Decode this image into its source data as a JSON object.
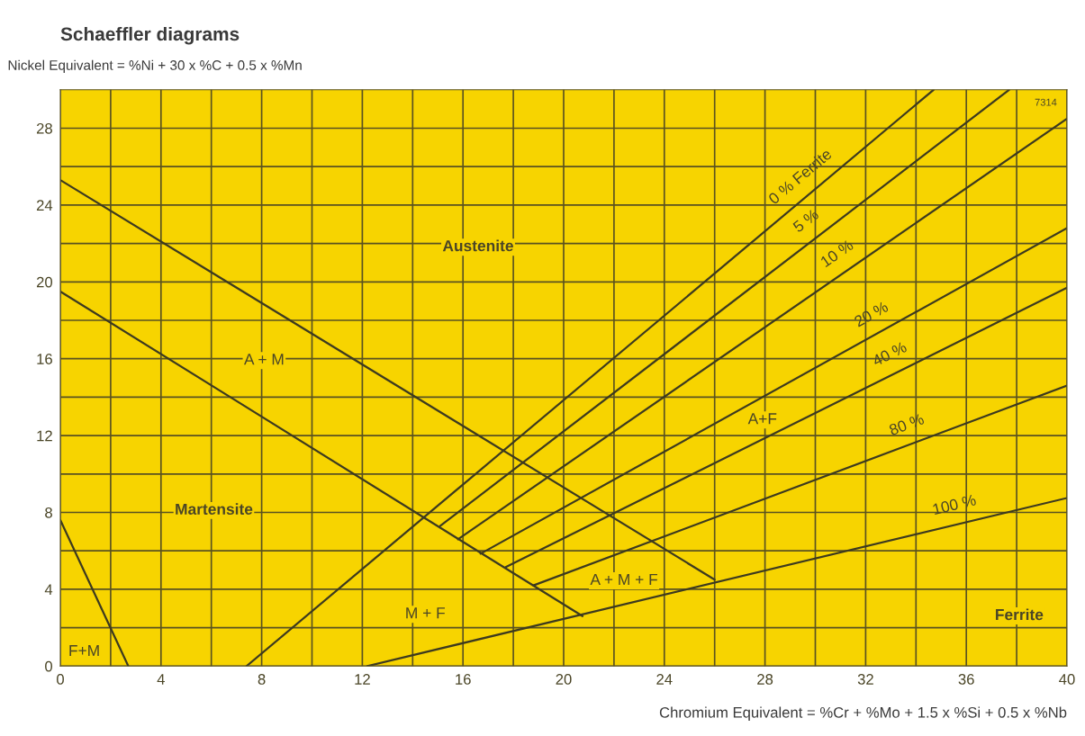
{
  "chart_data": {
    "type": "line",
    "title": "Schaeffler diagrams",
    "ylabel": "Nickel Equivalent = %Ni + 30 x %C + 0.5 x %Mn",
    "xlabel": "Chromium Equivalent = %Cr + %Mo + 1.5 x %Si + 0.5 x %Nb",
    "series": [
      {
        "color": "#3d3a1f",
        "x": [
          0,
          2.7
        ],
        "values": [
          7.6,
          0
        ]
      },
      {
        "color": "#3d3a1f",
        "x": [
          0,
          26
        ],
        "values": [
          25.3,
          4.5
        ]
      },
      {
        "color": "#3d3a1f",
        "x": [
          0,
          20.75
        ],
        "values": [
          19.5,
          2.6
        ]
      },
      {
        "color": "#3d3a1f",
        "x": [
          7.4,
          34.7
        ],
        "values": [
          0,
          30
        ]
      },
      {
        "color": "#3d3a1f",
        "x": [
          15.1,
          37.7
        ],
        "values": [
          7.3,
          30
        ]
      },
      {
        "color": "#3d3a1f",
        "x": [
          15.8,
          40
        ],
        "values": [
          6.6,
          28.5
        ]
      },
      {
        "color": "#3d3a1f",
        "x": [
          16.7,
          40
        ],
        "values": [
          5.85,
          22.8
        ]
      },
      {
        "color": "#3d3a1f",
        "x": [
          17.7,
          40
        ],
        "values": [
          5.15,
          19.7
        ]
      },
      {
        "color": "#3d3a1f",
        "x": [
          18.8,
          40
        ],
        "values": [
          4.2,
          14.6
        ]
      },
      {
        "color": "#3d3a1f",
        "x": [
          12.2,
          40
        ],
        "values": [
          0,
          8.75
        ]
      }
    ],
    "annotations": [
      {
        "text": "0 % Ferrite",
        "x": 29.9,
        "y": 24.7
      },
      {
        "text": "5 %",
        "x": 30.1,
        "y": 22.37
      },
      {
        "text": "10 %",
        "x": 31.3,
        "y": 20.63
      },
      {
        "text": "20 %",
        "x": 32.6,
        "y": 17.42
      },
      {
        "text": "40 %",
        "x": 33.3,
        "y": 15.33
      },
      {
        "text": "80 %",
        "x": 33.9,
        "y": 11.61
      },
      {
        "text": "100 %",
        "x": 35.7,
        "y": 7.4
      },
      "Austenite",
      "A + M",
      "Martensite",
      "M + F",
      "A + M + F",
      "A+F",
      "Ferrite",
      "F+M",
      "7314"
    ],
    "xlim": [
      0,
      40
    ],
    "xticks": [
      0,
      {
        "value": 2,
        "label": null
      },
      4,
      {
        "value": 6,
        "label": null
      },
      8,
      {
        "value": 10,
        "label": null
      },
      12,
      {
        "value": 14,
        "label": null
      },
      16,
      {
        "value": 18,
        "label": null
      },
      20,
      {
        "value": 22,
        "label": null
      },
      24,
      {
        "value": 26,
        "label": null
      },
      28,
      {
        "value": 30,
        "label": null
      },
      32,
      {
        "value": 34,
        "label": null
      },
      36,
      {
        "value": 38,
        "label": null
      },
      40
    ],
    "ylim": [
      0,
      30
    ],
    "yticks": [
      0,
      {
        "value": 2,
        "label": null
      },
      4,
      {
        "value": 6,
        "label": null
      },
      8,
      {
        "value": 10,
        "label": null
      },
      12,
      {
        "value": 14,
        "label": null
      },
      16,
      {
        "value": 18,
        "label": null
      },
      20,
      {
        "value": 22,
        "label": null
      },
      24,
      {
        "value": 26,
        "label": null
      },
      28
    ],
    "grid": true
  }
}
